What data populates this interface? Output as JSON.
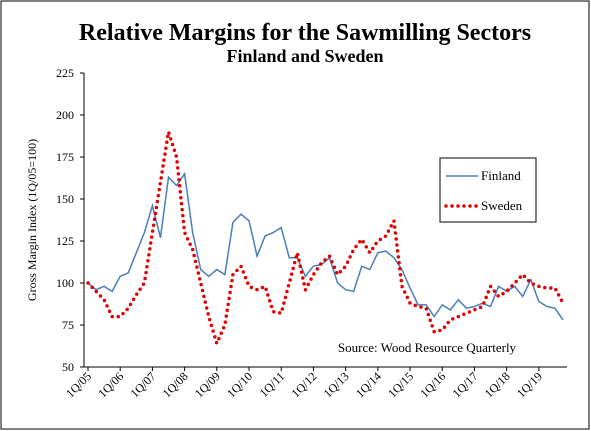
{
  "chart_data": {
    "type": "line",
    "title": "Relative Margins for the Sawmilling Sectors",
    "subtitle": "Finland and Sweden",
    "y_label": "Gross Margin Index (1Q/05=100)",
    "annotation": "Source: Wood Resource Quarterly",
    "categories": [
      "1Q/05",
      null,
      null,
      null,
      "1Q/06",
      null,
      null,
      null,
      "1Q/07",
      null,
      null,
      null,
      "1Q/08",
      null,
      null,
      null,
      "1Q/09",
      null,
      null,
      null,
      "1Q/10",
      null,
      null,
      null,
      "1Q/11",
      null,
      null,
      null,
      "1Q/12",
      null,
      null,
      null,
      "1Q/13",
      null,
      null,
      null,
      "1Q/14",
      null,
      null,
      null,
      "1Q/15",
      null,
      null,
      null,
      "1Q/16",
      null,
      null,
      null,
      "1Q/17",
      null,
      null,
      null,
      "1Q/18",
      null,
      null,
      null,
      "1Q/19",
      null,
      null,
      null
    ],
    "series": [
      {
        "name": "Finland",
        "color": "#4a7ebb",
        "style": "solid",
        "values": [
          100,
          96,
          98,
          95,
          104,
          106,
          118,
          130,
          146,
          127,
          163,
          158,
          165,
          130,
          108,
          104,
          108,
          105,
          136,
          141,
          137,
          116,
          128,
          130,
          133,
          115,
          115,
          104,
          110,
          111,
          115,
          100,
          96,
          95,
          110,
          108,
          118,
          119,
          115,
          108,
          97,
          87,
          87,
          80,
          87,
          84,
          90,
          85,
          86,
          88,
          86,
          98,
          95,
          98,
          92,
          102,
          89,
          86,
          85,
          78
        ]
      },
      {
        "name": "Sweden",
        "color": "#e00000",
        "style": "dotted",
        "values": [
          100,
          95,
          90,
          80,
          80,
          85,
          93,
          100,
          130,
          160,
          190,
          175,
          130,
          120,
          100,
          80,
          64,
          75,
          105,
          110,
          98,
          96,
          98,
          83,
          82,
          100,
          118,
          96,
          105,
          112,
          116,
          105,
          110,
          120,
          126,
          118,
          125,
          128,
          137,
          98,
          88,
          86,
          85,
          71,
          72,
          78,
          80,
          82,
          84,
          86,
          98,
          92,
          95,
          100,
          105,
          100,
          98,
          97,
          97,
          88
        ]
      }
    ],
    "ylim": [
      50,
      225
    ],
    "yticks": [
      50,
      75,
      100,
      125,
      150,
      175,
      200,
      225
    ],
    "grid": false,
    "legend": "right"
  }
}
